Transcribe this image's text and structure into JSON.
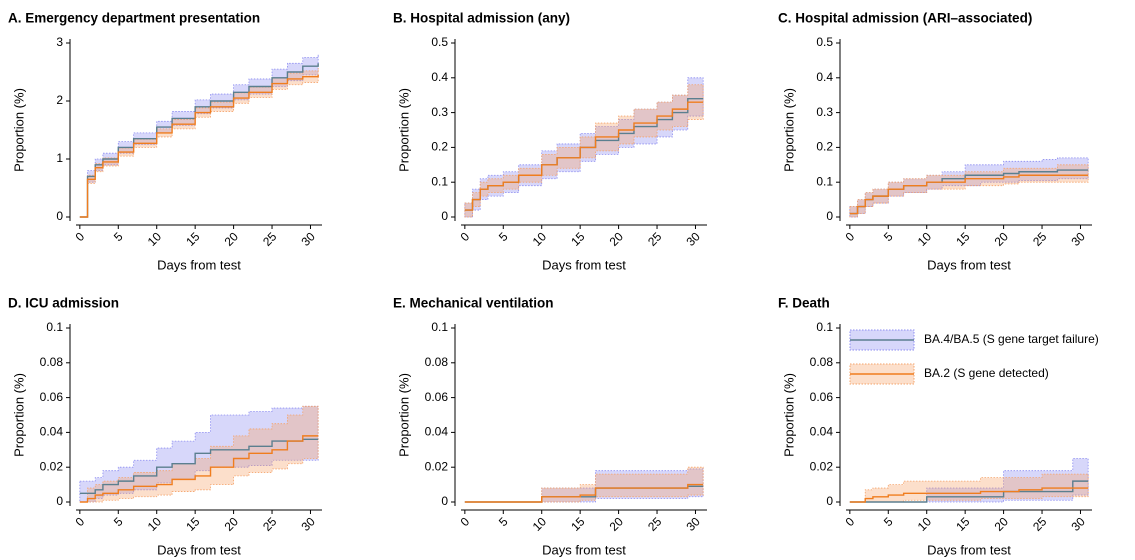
{
  "chart_data": [
    {
      "type": "step",
      "title": "A. Emergency department presentation",
      "xlabel": "Days from test",
      "ylabel": "Proportion (%)",
      "x": [
        0,
        1,
        2,
        3,
        5,
        7,
        10,
        12,
        15,
        17,
        20,
        22,
        25,
        27,
        29,
        31
      ],
      "xlim": [
        -0.5,
        31.5
      ],
      "xticks": [
        0,
        5,
        10,
        15,
        20,
        25,
        30
      ],
      "ylim": [
        0,
        3
      ],
      "yticks": [
        0,
        1,
        2,
        3
      ],
      "series": [
        {
          "color": "#5b7f8f",
          "band_color": "#8c8cf0",
          "values": [
            0,
            0.7,
            0.9,
            1.0,
            1.2,
            1.35,
            1.55,
            1.7,
            1.9,
            2.0,
            2.15,
            2.25,
            2.4,
            2.5,
            2.6,
            2.65
          ],
          "lower": [
            0,
            0.6,
            0.8,
            0.9,
            1.1,
            1.25,
            1.45,
            1.58,
            1.78,
            1.88,
            2.02,
            2.12,
            2.25,
            2.35,
            2.45,
            2.5
          ],
          "upper": [
            0,
            0.8,
            1.0,
            1.1,
            1.3,
            1.45,
            1.65,
            1.82,
            2.02,
            2.12,
            2.28,
            2.38,
            2.55,
            2.65,
            2.75,
            2.8
          ]
        },
        {
          "color": "#f07d1e",
          "band_color": "#f5a36a",
          "values": [
            0,
            0.65,
            0.85,
            0.95,
            1.12,
            1.27,
            1.45,
            1.6,
            1.8,
            1.9,
            2.05,
            2.15,
            2.3,
            2.38,
            2.42,
            2.45
          ],
          "lower": [
            0,
            0.58,
            0.78,
            0.88,
            1.05,
            1.2,
            1.38,
            1.52,
            1.72,
            1.82,
            1.96,
            2.06,
            2.2,
            2.28,
            2.32,
            2.33
          ],
          "upper": [
            0,
            0.72,
            0.92,
            1.02,
            1.19,
            1.34,
            1.52,
            1.68,
            1.88,
            1.98,
            2.14,
            2.24,
            2.4,
            2.48,
            2.52,
            2.57
          ]
        }
      ]
    },
    {
      "type": "step",
      "title": "B. Hospital admission (any)",
      "xlabel": "Days from test",
      "ylabel": "Proportion (%)",
      "x": [
        0,
        1,
        2,
        3,
        5,
        7,
        10,
        12,
        15,
        17,
        20,
        22,
        25,
        27,
        29,
        31
      ],
      "xlim": [
        -0.5,
        31.5
      ],
      "xticks": [
        0,
        5,
        10,
        15,
        20,
        25,
        30
      ],
      "ylim": [
        0,
        0.5
      ],
      "yticks": [
        0,
        0.1,
        0.2,
        0.3,
        0.4,
        0.5
      ],
      "series": [
        {
          "color": "#5b7f8f",
          "band_color": "#8c8cf0",
          "values": [
            0.02,
            0.05,
            0.08,
            0.09,
            0.1,
            0.12,
            0.15,
            0.17,
            0.2,
            0.22,
            0.24,
            0.26,
            0.28,
            0.3,
            0.34,
            0.34
          ],
          "lower": [
            0,
            0.02,
            0.05,
            0.06,
            0.07,
            0.09,
            0.11,
            0.13,
            0.16,
            0.18,
            0.2,
            0.21,
            0.23,
            0.25,
            0.29,
            0.29
          ],
          "upper": [
            0.04,
            0.08,
            0.11,
            0.12,
            0.13,
            0.15,
            0.19,
            0.21,
            0.24,
            0.26,
            0.28,
            0.31,
            0.33,
            0.35,
            0.4,
            0.4
          ]
        },
        {
          "color": "#f07d1e",
          "band_color": "#f5a36a",
          "values": [
            0.02,
            0.05,
            0.08,
            0.09,
            0.1,
            0.12,
            0.15,
            0.17,
            0.2,
            0.23,
            0.25,
            0.27,
            0.29,
            0.31,
            0.33,
            0.33
          ],
          "lower": [
            0,
            0.03,
            0.06,
            0.07,
            0.08,
            0.1,
            0.12,
            0.14,
            0.17,
            0.19,
            0.21,
            0.23,
            0.25,
            0.26,
            0.28,
            0.28
          ],
          "upper": [
            0.04,
            0.07,
            0.1,
            0.11,
            0.12,
            0.14,
            0.18,
            0.2,
            0.23,
            0.27,
            0.29,
            0.31,
            0.33,
            0.35,
            0.38,
            0.38
          ]
        }
      ]
    },
    {
      "type": "step",
      "title": "C. Hospital admission (ARI–associated)",
      "xlabel": "Days from test",
      "ylabel": "Proportion (%)",
      "x": [
        0,
        1,
        2,
        3,
        5,
        7,
        10,
        12,
        15,
        17,
        20,
        22,
        25,
        27,
        29,
        31
      ],
      "xlim": [
        -0.5,
        31.5
      ],
      "xticks": [
        0,
        5,
        10,
        15,
        20,
        25,
        30
      ],
      "ylim": [
        0,
        0.5
      ],
      "yticks": [
        0,
        0.1,
        0.2,
        0.3,
        0.4,
        0.5
      ],
      "series": [
        {
          "color": "#5b7f8f",
          "band_color": "#8c8cf0",
          "values": [
            0.01,
            0.03,
            0.05,
            0.06,
            0.08,
            0.09,
            0.1,
            0.11,
            0.12,
            0.12,
            0.125,
            0.13,
            0.13,
            0.135,
            0.135,
            0.135
          ],
          "lower": [
            0,
            0.01,
            0.03,
            0.04,
            0.06,
            0.07,
            0.08,
            0.09,
            0.09,
            0.1,
            0.1,
            0.105,
            0.105,
            0.11,
            0.11,
            0.11
          ],
          "upper": [
            0.03,
            0.05,
            0.07,
            0.08,
            0.1,
            0.11,
            0.12,
            0.13,
            0.15,
            0.15,
            0.16,
            0.16,
            0.165,
            0.17,
            0.17,
            0.17
          ]
        },
        {
          "color": "#f07d1e",
          "band_color": "#f5a36a",
          "values": [
            0.01,
            0.03,
            0.05,
            0.06,
            0.08,
            0.09,
            0.1,
            0.1,
            0.11,
            0.11,
            0.115,
            0.12,
            0.12,
            0.12,
            0.12,
            0.12
          ],
          "lower": [
            0,
            0.01,
            0.03,
            0.04,
            0.06,
            0.07,
            0.08,
            0.08,
            0.09,
            0.09,
            0.095,
            0.1,
            0.1,
            0.1,
            0.1,
            0.1
          ],
          "upper": [
            0.03,
            0.05,
            0.07,
            0.08,
            0.1,
            0.11,
            0.12,
            0.12,
            0.13,
            0.13,
            0.14,
            0.14,
            0.14,
            0.15,
            0.15,
            0.15
          ]
        }
      ]
    },
    {
      "type": "step",
      "title": "D. ICU admission",
      "xlabel": "Days from test",
      "ylabel": "Proportion (%)",
      "x": [
        0,
        1,
        2,
        3,
        5,
        7,
        10,
        12,
        15,
        17,
        20,
        22,
        25,
        27,
        29,
        31
      ],
      "xlim": [
        -0.5,
        31.5
      ],
      "xticks": [
        0,
        5,
        10,
        15,
        20,
        25,
        30
      ],
      "ylim": [
        0,
        0.1
      ],
      "yticks": [
        0,
        0.02,
        0.04,
        0.06,
        0.08,
        0.1
      ],
      "series": [
        {
          "color": "#5b7f8f",
          "band_color": "#8c8cf0",
          "values": [
            0.005,
            0.005,
            0.007,
            0.01,
            0.012,
            0.015,
            0.02,
            0.022,
            0.028,
            0.03,
            0.03,
            0.032,
            0.035,
            0.035,
            0.036,
            0.036
          ],
          "lower": [
            0,
            0,
            0.002,
            0.004,
            0.005,
            0.007,
            0.011,
            0.013,
            0.018,
            0.02,
            0.02,
            0.021,
            0.024,
            0.024,
            0.024,
            0.024
          ],
          "upper": [
            0.012,
            0.012,
            0.014,
            0.018,
            0.02,
            0.024,
            0.031,
            0.035,
            0.04,
            0.05,
            0.05,
            0.052,
            0.054,
            0.054,
            0.055,
            0.055
          ]
        },
        {
          "color": "#f07d1e",
          "band_color": "#f5a36a",
          "values": [
            0,
            0.002,
            0.004,
            0.005,
            0.007,
            0.009,
            0.01,
            0.013,
            0.015,
            0.02,
            0.025,
            0.028,
            0.03,
            0.035,
            0.038,
            0.038
          ],
          "lower": [
            0,
            0,
            0,
            0.001,
            0.002,
            0.003,
            0.004,
            0.006,
            0.007,
            0.01,
            0.015,
            0.017,
            0.019,
            0.022,
            0.025,
            0.025
          ],
          "upper": [
            0,
            0.008,
            0.01,
            0.012,
            0.014,
            0.017,
            0.018,
            0.022,
            0.025,
            0.032,
            0.038,
            0.042,
            0.045,
            0.05,
            0.055,
            0.055
          ]
        }
      ]
    },
    {
      "type": "step",
      "title": "E. Mechanical ventilation",
      "xlabel": "Days from test",
      "ylabel": "Proportion (%)",
      "x": [
        0,
        1,
        2,
        3,
        5,
        7,
        10,
        12,
        15,
        17,
        20,
        22,
        25,
        27,
        29,
        31
      ],
      "xlim": [
        -0.5,
        31.5
      ],
      "xticks": [
        0,
        5,
        10,
        15,
        20,
        25,
        30
      ],
      "ylim": [
        0,
        0.1
      ],
      "yticks": [
        0,
        0.02,
        0.04,
        0.06,
        0.08,
        0.1
      ],
      "series": [
        {
          "color": "#5b7f8f",
          "band_color": "#8c8cf0",
          "values": [
            0,
            0,
            0,
            0,
            0,
            0,
            0.003,
            0.003,
            0.003,
            0.008,
            0.008,
            0.008,
            0.008,
            0.008,
            0.009,
            0.009
          ],
          "lower": [
            0,
            0,
            0,
            0,
            0,
            0,
            0,
            0,
            0,
            0.002,
            0.002,
            0.002,
            0.002,
            0.002,
            0.003,
            0.003
          ],
          "upper": [
            0,
            0,
            0,
            0,
            0,
            0,
            0.008,
            0.008,
            0.008,
            0.018,
            0.018,
            0.018,
            0.018,
            0.018,
            0.019,
            0.019
          ]
        },
        {
          "color": "#f07d1e",
          "band_color": "#f5a36a",
          "values": [
            0,
            0,
            0,
            0,
            0,
            0,
            0.003,
            0.003,
            0.004,
            0.008,
            0.008,
            0.008,
            0.008,
            0.008,
            0.01,
            0.01
          ],
          "lower": [
            0,
            0,
            0,
            0,
            0,
            0,
            0,
            0,
            0.001,
            0.003,
            0.003,
            0.003,
            0.003,
            0.003,
            0.004,
            0.004
          ],
          "upper": [
            0,
            0,
            0,
            0,
            0,
            0,
            0.008,
            0.008,
            0.01,
            0.016,
            0.016,
            0.016,
            0.016,
            0.016,
            0.02,
            0.02
          ]
        }
      ]
    },
    {
      "type": "step",
      "title": "F. Death",
      "xlabel": "Days from test",
      "ylabel": "Proportion (%)",
      "x": [
        0,
        1,
        2,
        3,
        5,
        7,
        10,
        12,
        15,
        17,
        20,
        22,
        25,
        27,
        29,
        31
      ],
      "xlim": [
        -0.5,
        31.5
      ],
      "xticks": [
        0,
        5,
        10,
        15,
        20,
        25,
        30
      ],
      "ylim": [
        0,
        0.1
      ],
      "yticks": [
        0,
        0.02,
        0.04,
        0.06,
        0.08,
        0.1
      ],
      "legend": "upper left",
      "series": [
        {
          "name": "BA.4/BA.5 (S gene target failure)",
          "color": "#5b7f8f",
          "band_color": "#8c8cf0",
          "values": [
            0,
            0,
            0,
            0,
            0,
            0,
            0.003,
            0.003,
            0.003,
            0.003,
            0.006,
            0.006,
            0.006,
            0.006,
            0.012,
            0.012
          ],
          "lower": [
            0,
            0,
            0,
            0,
            0,
            0,
            0,
            0,
            0,
            0,
            0.001,
            0.001,
            0.001,
            0.001,
            0.004,
            0.004
          ],
          "upper": [
            0,
            0,
            0,
            0,
            0,
            0,
            0.008,
            0.008,
            0.008,
            0.008,
            0.018,
            0.018,
            0.018,
            0.018,
            0.025,
            0.025
          ]
        },
        {
          "name": "BA.2 (S gene detected)",
          "color": "#f07d1e",
          "band_color": "#f5a36a",
          "values": [
            0,
            0,
            0.002,
            0.003,
            0.004,
            0.005,
            0.005,
            0.005,
            0.005,
            0.006,
            0.006,
            0.007,
            0.008,
            0.008,
            0.008,
            0.008
          ],
          "lower": [
            0,
            0,
            0,
            0,
            0,
            0.001,
            0.001,
            0.001,
            0.001,
            0.002,
            0.002,
            0.002,
            0.003,
            0.003,
            0.003,
            0.003
          ],
          "upper": [
            0,
            0,
            0.007,
            0.008,
            0.01,
            0.012,
            0.012,
            0.012,
            0.012,
            0.014,
            0.014,
            0.014,
            0.016,
            0.016,
            0.016,
            0.016
          ]
        }
      ]
    }
  ]
}
